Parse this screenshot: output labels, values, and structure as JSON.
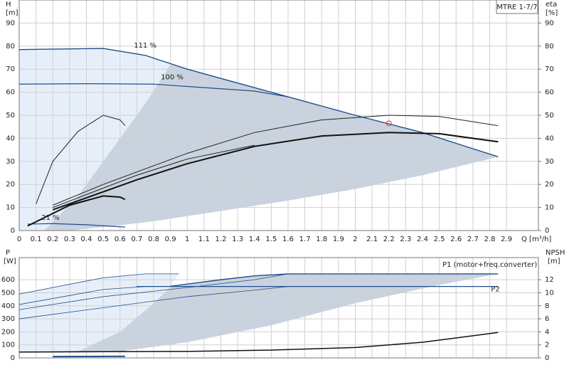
{
  "model_label": "MTRE 1-7/7",
  "chart_data": [
    {
      "type": "line",
      "y_label": "H",
      "y_unit": "[m]",
      "y2_label": "eta",
      "y2_unit": "[%]",
      "x_label": "Q [m³/h]",
      "xlim": [
        0,
        3.09
      ],
      "xticks": [
        0,
        0.1,
        0.2,
        0.3,
        0.4,
        0.5,
        0.6,
        0.7,
        0.8,
        0.9,
        1.0,
        1.1,
        1.2,
        1.3,
        1.4,
        1.5,
        1.6,
        1.7,
        1.8,
        1.9,
        2.0,
        2.1,
        2.2,
        2.3,
        2.4,
        2.5,
        2.6,
        2.7,
        2.8,
        2.9
      ],
      "ylim": [
        0,
        100
      ],
      "yticks": [
        0,
        10,
        20,
        30,
        40,
        50,
        60,
        70,
        80,
        90
      ],
      "y2lim": [
        0,
        100
      ],
      "y2ticks": [
        0,
        10,
        20,
        30,
        40,
        50,
        60,
        70,
        80,
        90
      ],
      "grid": true,
      "regions": [
        {
          "color": "#e6eff9",
          "x": [
            0,
            0,
            0.5,
            0.75,
            0.9,
            0.75,
            0.55,
            0.35,
            0.15
          ],
          "values": [
            0,
            78.5,
            79,
            76,
            72,
            55,
            35,
            15,
            0
          ]
        },
        {
          "color": "#c9d3df",
          "x": [
            0.15,
            0.35,
            0.55,
            0.75,
            0.9,
            1.0,
            1.6,
            2.0,
            2.4,
            2.85,
            2.4,
            2.0,
            1.6,
            1.2,
            0.8,
            0.5,
            0.3
          ],
          "values": [
            0,
            15,
            35,
            55,
            72,
            70,
            58,
            50,
            42.5,
            32,
            24,
            18,
            13,
            8.5,
            4,
            1.5,
            0
          ]
        }
      ],
      "series": [
        {
          "name": "111 %",
          "color": "#1f4e8c",
          "width": 1.4,
          "x": [
            0,
            0.5,
            0.75,
            1.0,
            1.3,
            1.6,
            2.0,
            2.4,
            2.85
          ],
          "values": [
            78.5,
            79,
            76,
            70,
            64,
            58,
            50,
            42.5,
            32
          ]
        },
        {
          "name": "100 %",
          "color": "#1f4e8c",
          "width": 1.2,
          "x": [
            0,
            0.4,
            0.8,
            1.0,
            1.2,
            1.4,
            1.6
          ],
          "values": [
            63.5,
            63.7,
            63.5,
            62.5,
            61.5,
            60.5,
            58
          ]
        },
        {
          "name": "21 %",
          "color": "#1f4e8c",
          "width": 1.2,
          "x": [
            0.05,
            0.2,
            0.4,
            0.63
          ],
          "values": [
            2.8,
            3,
            2.5,
            1.5
          ]
        },
        {
          "axis": "y2",
          "color": "#222222",
          "width": 1,
          "x": [
            0.2,
            0.5,
            1.0,
            1.4,
            1.8,
            2.2,
            2.5,
            2.85
          ],
          "values": [
            11,
            20,
            33.5,
            42.5,
            48,
            50,
            49.5,
            45.5
          ]
        },
        {
          "axis": "y2",
          "color": "#222222",
          "width": 1,
          "x": [
            0.2,
            0.7,
            1.0,
            1.4
          ],
          "values": [
            10,
            24,
            31,
            37
          ]
        },
        {
          "axis": "y2",
          "color": "#222222",
          "width": 1,
          "x": [
            0.1,
            0.2,
            0.35,
            0.5,
            0.6,
            0.63
          ],
          "values": [
            11.5,
            30,
            43,
            50,
            48,
            45.5
          ]
        },
        {
          "axis": "y2",
          "color": "#111111",
          "width": 2,
          "x": [
            0.2,
            0.7,
            1.0,
            1.4,
            1.8,
            2.2,
            2.5,
            2.85
          ],
          "values": [
            9,
            22,
            29,
            36.5,
            41,
            42.5,
            42,
            38.5
          ]
        },
        {
          "axis": "y2",
          "color": "#111111",
          "width": 2,
          "x": [
            0.05,
            0.3,
            0.5,
            0.6,
            0.63
          ],
          "values": [
            2,
            11,
            15,
            14.5,
            13.5
          ]
        }
      ],
      "operating_point": {
        "x": 2.2,
        "y": 46.5,
        "color": "#e03c31"
      }
    },
    {
      "type": "line",
      "y_label": "P",
      "y_unit": "[W]",
      "y2_label": "NPSH",
      "y2_unit": "[m]",
      "xlim": [
        0,
        3.09
      ],
      "xticks": [
        0,
        0.1,
        0.2,
        0.3,
        0.4,
        0.5,
        0.6,
        0.7,
        0.8,
        0.9,
        1.0,
        1.1,
        1.2,
        1.3,
        1.4,
        1.5,
        1.6,
        1.7,
        1.8,
        1.9,
        2.0,
        2.1,
        2.2,
        2.3,
        2.4,
        2.5,
        2.6,
        2.7,
        2.8,
        2.9
      ],
      "ylim": [
        0,
        770
      ],
      "yticks": [
        0,
        100,
        200,
        300,
        400,
        500,
        600
      ],
      "y2lim": [
        0,
        15.4
      ],
      "y2ticks": [
        0,
        2,
        4,
        6,
        8,
        10,
        12
      ],
      "grid": true,
      "regions": [
        {
          "color": "#e6eff9",
          "x": [
            0,
            0,
            0.5,
            0.75,
            0.95,
            0.9,
            0.8,
            0.6,
            0.35
          ],
          "values": [
            50,
            490,
            620,
            645,
            645,
            545,
            420,
            200,
            50
          ]
        },
        {
          "color": "#c9d3df",
          "x": [
            0.35,
            0.6,
            0.8,
            0.9,
            1.4,
            1.6,
            2.85,
            2.5,
            2.0,
            1.5,
            1.0,
            0.6
          ],
          "values": [
            50,
            200,
            420,
            545,
            630,
            645,
            645,
            560,
            420,
            250,
            120,
            50
          ]
        }
      ],
      "series": [
        {
          "name": "P1 (motor+freq.converter)",
          "color": "#1f4e8c",
          "width": 1.4,
          "x": [
            0.9,
            1.2,
            1.4,
            1.6,
            2.85
          ],
          "values": [
            550,
            600,
            630,
            645,
            645
          ]
        },
        {
          "name": "P2",
          "color": "#1f4e8c",
          "width": 1.2,
          "x": [
            0.7,
            2.85
          ],
          "values": [
            548,
            548
          ]
        },
        {
          "color": "#1f4e8c",
          "width": 0.8,
          "x": [
            0,
            0.5,
            0.75,
            0.95
          ],
          "values": [
            490,
            615,
            645,
            645
          ]
        },
        {
          "color": "#1f4e8c",
          "width": 0.8,
          "x": [
            0,
            0.5,
            0.75,
            1.0
          ],
          "values": [
            410,
            525,
            548,
            548
          ]
        },
        {
          "color": "#1f4e8c",
          "width": 0.8,
          "x": [
            0,
            0.5,
            1.0,
            1.4,
            1.6
          ],
          "values": [
            370,
            470,
            540,
            600,
            645
          ]
        },
        {
          "color": "#1f4e8c",
          "width": 0.8,
          "x": [
            0,
            0.5,
            1.0,
            1.4,
            1.6
          ],
          "values": [
            300,
            385,
            470,
            520,
            548
          ]
        },
        {
          "color": "#1f4e8c",
          "width": 2,
          "x": [
            0.2,
            0.63
          ],
          "values": [
            10,
            12
          ]
        },
        {
          "color": "#111111",
          "width": 1,
          "x": [
            0,
            0.63
          ],
          "values": [
            45,
            50
          ]
        },
        {
          "axis": "y2",
          "color": "#111111",
          "width": 1.5,
          "x": [
            0,
            0.5,
            1.0,
            1.5,
            2.0,
            2.4,
            2.85
          ],
          "values": [
            0.9,
            0.95,
            1.0,
            1.2,
            1.6,
            2.4,
            3.9
          ]
        }
      ]
    }
  ]
}
